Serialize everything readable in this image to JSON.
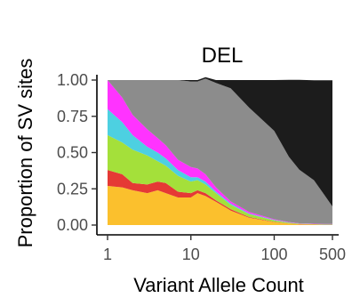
{
  "chart_data": {
    "type": "area",
    "stacked": true,
    "normalized": true,
    "title": "DEL",
    "xlabel": "Variant Allele Count",
    "ylabel": "Proportion of SV sites",
    "x_scale": "log10",
    "xlim": [
      1,
      500
    ],
    "ylim": [
      0,
      1
    ],
    "x_ticks": [
      1,
      10,
      100,
      500
    ],
    "x_tick_labels": [
      "1",
      "10",
      "100",
      "500"
    ],
    "y_ticks": [
      0,
      0.25,
      0.5,
      0.75,
      1
    ],
    "y_tick_labels": [
      "0.00",
      "0.25",
      "0.50",
      "0.75",
      "1.00"
    ],
    "grid": false,
    "legend": "none",
    "x": [
      1,
      1.5,
      2,
      3,
      4,
      5,
      7,
      10,
      12,
      15,
      20,
      30,
      50,
      100,
      150,
      200,
      300,
      400,
      500
    ],
    "series": [
      {
        "color": "#FBC02D",
        "values": [
          0.27,
          0.26,
          0.24,
          0.22,
          0.24,
          0.22,
          0.19,
          0.19,
          0.22,
          0.2,
          0.16,
          0.1,
          0.05,
          0.02,
          0.01,
          0.005,
          0.003,
          0.002,
          0.002
        ]
      },
      {
        "color": "#E53935",
        "values": [
          0.11,
          0.09,
          0.05,
          0.06,
          0.06,
          0.07,
          0.04,
          0.03,
          0.02,
          0.02,
          0.01,
          0.01,
          0.005,
          0.002,
          0.001,
          0.001,
          0.001,
          0.001,
          0.001
        ]
      },
      {
        "color": "#A4E03A",
        "values": [
          0.24,
          0.22,
          0.23,
          0.2,
          0.14,
          0.12,
          0.11,
          0.08,
          0.07,
          0.06,
          0.05,
          0.03,
          0.02,
          0.01,
          0.005,
          0.003,
          0.002,
          0.002,
          0.002
        ]
      },
      {
        "color": "#4DD0E1",
        "values": [
          0.18,
          0.14,
          0.1,
          0.06,
          0.06,
          0.05,
          0.04,
          0.03,
          0.02,
          0.02,
          0.01,
          0.008,
          0.005,
          0.003,
          0.002,
          0.001,
          0.001,
          0.001,
          0.001
        ]
      },
      {
        "color": "#FF33FF",
        "values": [
          0.2,
          0.17,
          0.14,
          0.12,
          0.1,
          0.09,
          0.07,
          0.07,
          0.06,
          0.05,
          0.03,
          0.015,
          0.01,
          0.005,
          0.003,
          0.002,
          0.002,
          0.002,
          0.002
        ]
      },
      {
        "color": "#8C8C8C",
        "values": [
          0.0,
          0.12,
          0.24,
          0.34,
          0.4,
          0.45,
          0.55,
          0.59,
          0.6,
          0.66,
          0.72,
          0.78,
          0.72,
          0.61,
          0.45,
          0.37,
          0.3,
          0.2,
          0.12
        ]
      },
      {
        "color": "#1C1C1C",
        "values": [
          0.0,
          0.0,
          0.0,
          0.0,
          0.0,
          0.0,
          0.0,
          0.01,
          0.01,
          0.01,
          0.02,
          0.057,
          0.19,
          0.35,
          0.53,
          0.62,
          0.69,
          0.79,
          0.87
        ]
      }
    ]
  }
}
